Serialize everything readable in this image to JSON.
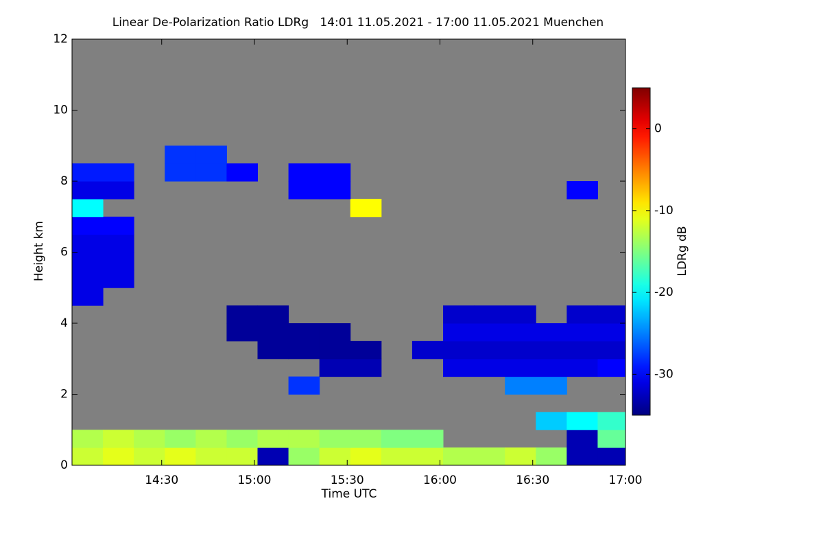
{
  "chart_data": {
    "type": "heatmap",
    "title": "Linear De-Polarization Ratio LDRg   14:01 11.05.2021 - 17:00 11.05.2021 Muenchen",
    "xlabel": "Time UTC",
    "ylabel": "Height km",
    "colorbar_label": "LDRg dB",
    "colormap": "jet",
    "missing_color": "#808080",
    "xlim": [
      841,
      1020
    ],
    "xticks": [
      {
        "value": 870,
        "label": "14:30"
      },
      {
        "value": 900,
        "label": "15:00"
      },
      {
        "value": 930,
        "label": "15:30"
      },
      {
        "value": 960,
        "label": "16:00"
      },
      {
        "value": 990,
        "label": "16:30"
      },
      {
        "value": 1020,
        "label": "17:00"
      }
    ],
    "ylim": [
      0,
      12
    ],
    "yticks": [
      0,
      2,
      4,
      6,
      8,
      10,
      12
    ],
    "zlim": [
      -35,
      5
    ],
    "zticks": [
      -30,
      -20,
      -10,
      0
    ],
    "x_edges": [
      841,
      851,
      861,
      871,
      881,
      891,
      901,
      911,
      921,
      931,
      941,
      951,
      961,
      971,
      981,
      991,
      1001,
      1011,
      1020
    ],
    "y_edges": [
      0,
      0.5,
      1,
      1.5,
      2,
      2.5,
      3,
      3.5,
      4,
      4.5,
      5,
      5.5,
      6,
      6.5,
      7,
      7.5,
      8,
      8.5,
      9,
      9.5,
      10,
      10.5,
      11,
      11.5,
      12
    ],
    "z": [
      [
        -12,
        -11,
        -12,
        -11,
        -12,
        -12,
        -33,
        -14,
        -12,
        -11,
        -12,
        -12,
        -13,
        -13,
        -12,
        -14,
        -33,
        -33
      ],
      [
        -13,
        -12,
        -13,
        -14,
        -13,
        -14,
        -13,
        -13,
        -14,
        -14,
        -15,
        -15,
        null,
        null,
        null,
        null,
        -33,
        -16
      ],
      [
        null,
        null,
        null,
        null,
        null,
        null,
        null,
        null,
        null,
        null,
        null,
        null,
        null,
        null,
        null,
        -22,
        -20,
        -18
      ],
      [
        null,
        null,
        null,
        null,
        null,
        null,
        null,
        null,
        null,
        null,
        null,
        null,
        null,
        null,
        null,
        null,
        null,
        null
      ],
      [
        null,
        null,
        null,
        null,
        null,
        null,
        null,
        -28,
        null,
        null,
        null,
        null,
        null,
        null,
        -25,
        -25,
        null,
        null
      ],
      [
        null,
        null,
        null,
        null,
        null,
        null,
        null,
        null,
        -33,
        -33,
        null,
        null,
        -31,
        -31,
        -31,
        -31,
        -31,
        -30
      ],
      [
        null,
        null,
        null,
        null,
        null,
        null,
        -34,
        -34,
        -34,
        -34,
        null,
        -32,
        -32,
        -32,
        -32,
        -32,
        -32,
        -32
      ],
      [
        null,
        null,
        null,
        null,
        null,
        -34,
        -34,
        -34,
        -34,
        null,
        null,
        null,
        -31,
        -31,
        -31,
        -31,
        -31,
        -31
      ],
      [
        null,
        null,
        null,
        null,
        null,
        -34,
        -34,
        null,
        null,
        null,
        null,
        null,
        -32,
        -32,
        -32,
        null,
        -32,
        -32
      ],
      [
        -31,
        null,
        null,
        null,
        null,
        null,
        null,
        null,
        null,
        null,
        null,
        null,
        null,
        null,
        null,
        null,
        null,
        null
      ],
      [
        -31,
        -31,
        null,
        null,
        null,
        null,
        null,
        null,
        null,
        null,
        null,
        null,
        null,
        null,
        null,
        null,
        null,
        null
      ],
      [
        -31,
        -31,
        null,
        null,
        null,
        null,
        null,
        null,
        null,
        null,
        null,
        null,
        null,
        null,
        null,
        null,
        null,
        null
      ],
      [
        -31,
        -31,
        null,
        null,
        null,
        null,
        null,
        null,
        null,
        null,
        null,
        null,
        null,
        null,
        null,
        null,
        null,
        null
      ],
      [
        -30,
        -30,
        null,
        null,
        null,
        null,
        null,
        null,
        null,
        null,
        null,
        null,
        null,
        null,
        null,
        null,
        null,
        null
      ],
      [
        -20,
        null,
        null,
        null,
        null,
        null,
        null,
        null,
        null,
        -10,
        null,
        null,
        null,
        null,
        null,
        null,
        null,
        null
      ],
      [
        -31,
        -31,
        null,
        null,
        null,
        null,
        null,
        -30,
        -30,
        null,
        null,
        null,
        null,
        null,
        null,
        null,
        -30,
        null
      ],
      [
        -29,
        -29,
        null,
        -28,
        -28,
        -30,
        null,
        -30,
        -30,
        null,
        null,
        null,
        null,
        null,
        null,
        null,
        null,
        null
      ],
      [
        null,
        null,
        null,
        -28,
        -28,
        null,
        null,
        null,
        null,
        null,
        null,
        null,
        null,
        null,
        null,
        null,
        null,
        null
      ],
      [
        null,
        null,
        null,
        null,
        null,
        null,
        null,
        null,
        null,
        null,
        null,
        null,
        null,
        null,
        null,
        null,
        null,
        null
      ],
      [
        null,
        null,
        null,
        null,
        null,
        null,
        null,
        null,
        null,
        null,
        null,
        null,
        null,
        null,
        null,
        null,
        null,
        null
      ],
      [
        null,
        null,
        null,
        null,
        null,
        null,
        null,
        null,
        null,
        null,
        null,
        null,
        null,
        null,
        null,
        null,
        null,
        null
      ],
      [
        null,
        null,
        null,
        null,
        null,
        null,
        null,
        null,
        null,
        null,
        null,
        null,
        null,
        null,
        null,
        null,
        null,
        null
      ],
      [
        null,
        null,
        null,
        null,
        null,
        null,
        null,
        null,
        null,
        null,
        null,
        null,
        null,
        null,
        null,
        null,
        null,
        null
      ],
      [
        null,
        null,
        null,
        null,
        null,
        null,
        null,
        null,
        null,
        null,
        null,
        null,
        null,
        null,
        null,
        null,
        null,
        null
      ]
    ]
  }
}
